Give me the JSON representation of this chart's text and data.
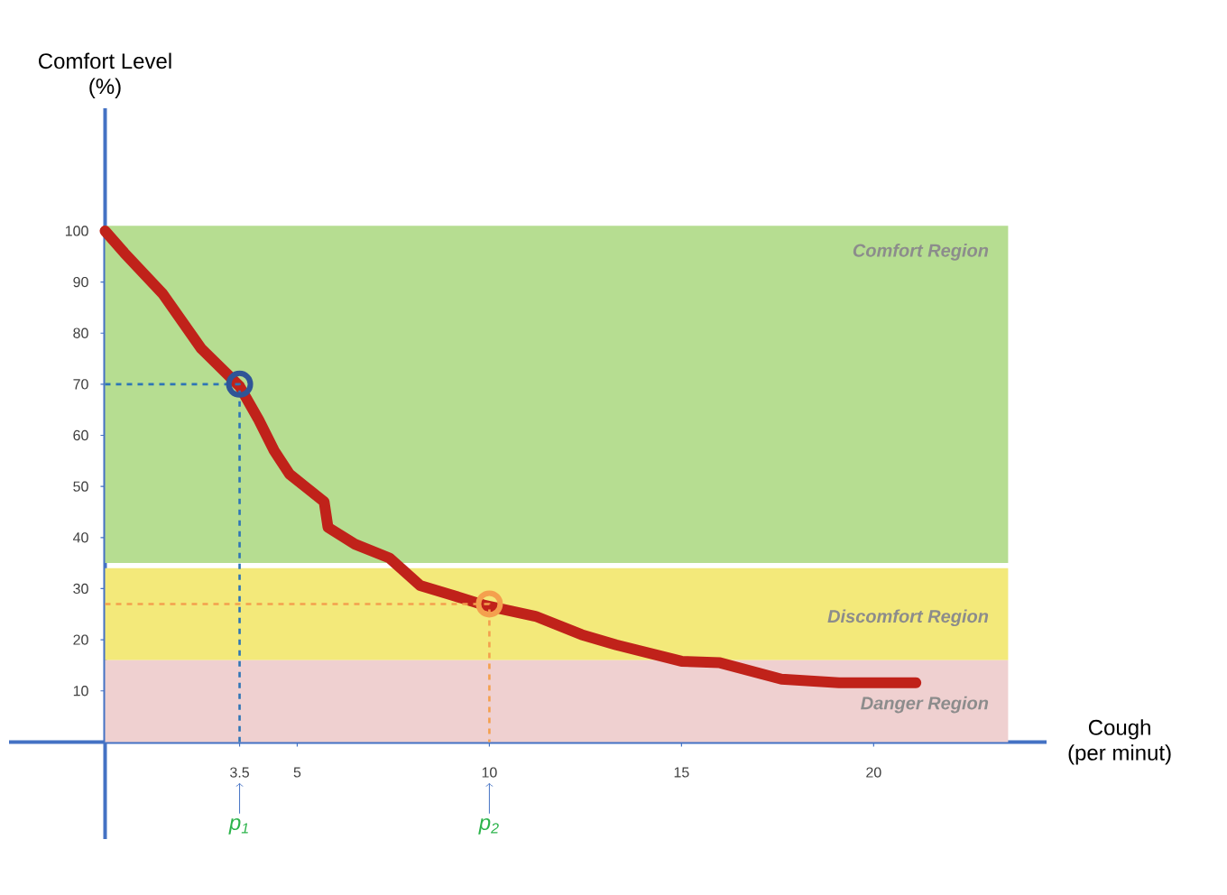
{
  "chart_data": {
    "type": "line",
    "ylabel": "Comfort Level\n(%)",
    "xlabel": "Cough\n(per minut)",
    "xlim": [
      -2.5,
      24.5
    ],
    "ylim": [
      -19,
      124
    ],
    "xticks": [
      3.5,
      5,
      10,
      15,
      20
    ],
    "yticks": [
      10,
      20,
      30,
      40,
      50,
      60,
      70,
      80,
      90,
      100
    ],
    "series": [
      {
        "type": "line",
        "color": "#c0221a",
        "marker": "none",
        "x": [
          0,
          0.5,
          1.5,
          2.5,
          3.5,
          4.0,
          4.4,
          4.8,
          5.2,
          5.7,
          5.8,
          6.5,
          7.4,
          8.2,
          9.0,
          9.9,
          11.2,
          12.4,
          13.3,
          15.0,
          16.0,
          17.6,
          19.1,
          21.1
        ],
        "values": [
          100,
          95.7,
          87.7,
          77,
          69.6,
          63,
          57,
          52.4,
          50,
          47,
          42,
          38.7,
          36,
          30.6,
          28.8,
          26.7,
          24.6,
          21,
          19,
          15.8,
          15.5,
          12.3,
          11.6,
          11.6
        ]
      },
      {
        "color": "#2e75b6",
        "marker": "none",
        "line_style": "dashed",
        "x": [
          0,
          3.5,
          3.5
        ],
        "values": [
          70,
          70,
          0
        ]
      },
      {
        "color": "#f4a04e",
        "marker": "none",
        "line_style": "dashed",
        "x": [
          0,
          10,
          10
        ],
        "values": [
          27,
          27,
          0
        ]
      },
      {
        "type": "scatter",
        "marker": "circle",
        "color": "#2f5597",
        "x": [
          3.5
        ],
        "values": [
          70
        ]
      },
      {
        "type": "scatter",
        "marker": "circle",
        "color": "#f4a04e",
        "x": [
          10
        ],
        "values": [
          27
        ]
      }
    ],
    "bands": [
      {
        "axis": "y",
        "from": 35,
        "to": 101,
        "label": "Comfort Region",
        "color": "#b6dd91"
      },
      {
        "axis": "y",
        "from": 16,
        "to": 34,
        "label": "Discomfort Region",
        "color": "#f3e97a"
      },
      {
        "axis": "y",
        "from": 0,
        "to": 16,
        "label": "Danger Region",
        "color": "#efd0d0"
      }
    ],
    "annotations": [
      {
        "text": "p$_{1}$",
        "x": 3.5,
        "y": -8
      },
      {
        "text": "p$_{2}$",
        "x": 10,
        "y": -8
      }
    ]
  }
}
